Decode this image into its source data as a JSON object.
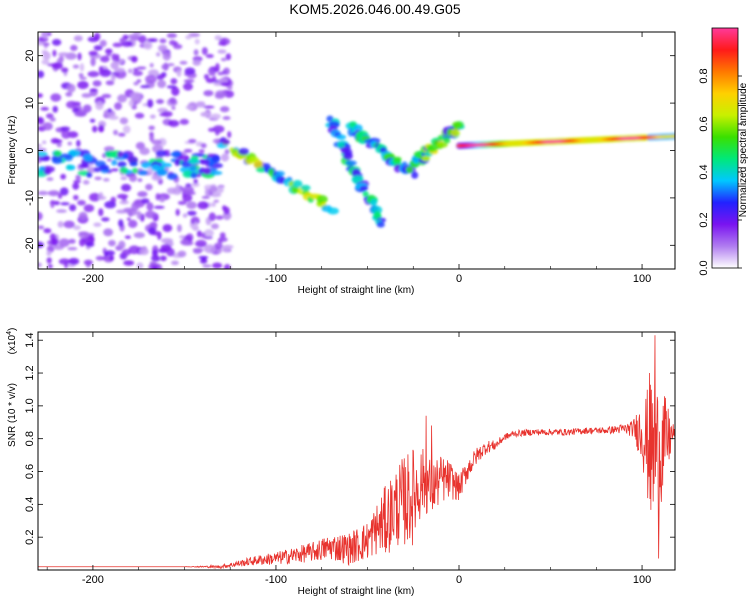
{
  "figure": {
    "title": "KOM5.2026.046.00.49.G05"
  },
  "colors": {
    "snr_line": "#e8332e",
    "colorbar": [
      "#ffffff",
      "#b07cf0",
      "#7a14f0",
      "#2222ff",
      "#00c8ff",
      "#00e87a",
      "#3ae000",
      "#c8f000",
      "#ffd000",
      "#ff7800",
      "#ff1a1a",
      "#ff3a9a"
    ]
  },
  "chart_data": [
    {
      "type": "heatmap",
      "name": "spectrogram",
      "xlabel": "Height of straight line (km)",
      "ylabel": "Frequency (Hz)",
      "xlim": [
        -230,
        118
      ],
      "ylim": [
        -25,
        25
      ],
      "xticks": [
        -200,
        -100,
        0,
        100
      ],
      "xtick_labels": [
        "-200",
        "-100",
        "0",
        "100"
      ],
      "yticks": [
        -20,
        -10,
        0,
        10,
        20
      ],
      "ytick_labels": [
        "-20",
        "-10",
        "0",
        "10",
        "20"
      ],
      "colorbar": {
        "label": "Normalized spectral amplitude",
        "range": [
          0,
          1
        ],
        "ticks": [
          0.0,
          0.2,
          0.4,
          0.6,
          0.8
        ],
        "tick_labels": [
          "0.0",
          "0.2",
          "0.4",
          "0.6",
          "0.8"
        ]
      },
      "features": [
        {
          "name": "noise-region",
          "x": [
            -230,
            -125
          ],
          "y": [
            -25,
            25
          ],
          "amplitude": 0.15
        },
        {
          "name": "band-left",
          "x": [
            -230,
            -130
          ],
          "y_center": -3,
          "amplitude": 0.3
        },
        {
          "name": "band-main",
          "x": [
            -130,
            -70
          ],
          "y": [
            2,
            -12
          ],
          "amplitude": 0.5
        },
        {
          "name": "branch-diagonal",
          "x": [
            -70,
            -42
          ],
          "y": [
            6,
            -16
          ],
          "amplitude": 0.3
        },
        {
          "name": "branch-mid",
          "x": [
            -60,
            -25
          ],
          "y": [
            5,
            -5
          ],
          "amplitude": 0.35
        },
        {
          "name": "branch-near-zero",
          "x": [
            -25,
            0
          ],
          "y": [
            -3,
            5
          ],
          "amplitude": 0.5
        },
        {
          "name": "ridge",
          "x": [
            0,
            118
          ],
          "y": [
            1,
            3
          ],
          "amplitude": 0.9
        }
      ]
    },
    {
      "type": "line",
      "name": "snr",
      "xlabel": "Height of straight line (km)",
      "ylabel": "SNR (10 * v/v)",
      "y_multiplier": "(x10",
      "y_multiplier_exp": "4",
      "y_multiplier_close": ")",
      "xlim": [
        -230,
        118
      ],
      "ylim": [
        0,
        1.45
      ],
      "xticks": [
        -200,
        -100,
        0,
        100
      ],
      "xtick_labels": [
        "-200",
        "-100",
        "0",
        "100"
      ],
      "yticks": [
        0.2,
        0.4,
        0.6,
        0.8,
        1.0,
        1.2,
        1.4
      ],
      "ytick_labels": [
        "0.2",
        "0.4",
        "0.6",
        "0.8",
        "1.0",
        "1.2",
        "1.4"
      ],
      "series": [
        {
          "name": "SNR",
          "color": "#e8332e",
          "x": [
            -230,
            -200,
            -150,
            -130,
            -120,
            -110,
            -100,
            -90,
            -80,
            -70,
            -60,
            -50,
            -45,
            -40,
            -35,
            -30,
            -25,
            -20,
            -15,
            -10,
            -5,
            0,
            5,
            10,
            15,
            20,
            25,
            30,
            40,
            50,
            60,
            70,
            80,
            90,
            95,
            100,
            105,
            110,
            118
          ],
          "y": [
            0.02,
            0.02,
            0.02,
            0.02,
            0.04,
            0.06,
            0.07,
            0.09,
            0.11,
            0.14,
            0.13,
            0.18,
            0.25,
            0.3,
            0.38,
            0.42,
            0.45,
            0.55,
            0.5,
            0.55,
            0.55,
            0.5,
            0.62,
            0.7,
            0.75,
            0.76,
            0.81,
            0.83,
            0.84,
            0.84,
            0.84,
            0.85,
            0.85,
            0.86,
            0.86,
            0.85,
            0.7,
            0.75,
            0.84
          ],
          "noise": [
            0,
            0,
            0,
            0.01,
            0.02,
            0.03,
            0.04,
            0.05,
            0.06,
            0.08,
            0.1,
            0.12,
            0.16,
            0.22,
            0.24,
            0.28,
            0.3,
            0.2,
            0.18,
            0.15,
            0.12,
            0.08,
            0.07,
            0.05,
            0.04,
            0.03,
            0.02,
            0.02,
            0.02,
            0.02,
            0.02,
            0.02,
            0.02,
            0.03,
            0.05,
            0.2,
            0.45,
            0.4,
            0.02
          ],
          "peaks": [
            {
              "x": -18,
              "y": 0.94
            },
            {
              "x": -15,
              "y": 0.88
            },
            {
              "x": 104,
              "y": 1.2
            },
            {
              "x": 107,
              "y": 1.43
            },
            {
              "x": 109,
              "y": 0.07
            }
          ]
        }
      ]
    }
  ]
}
